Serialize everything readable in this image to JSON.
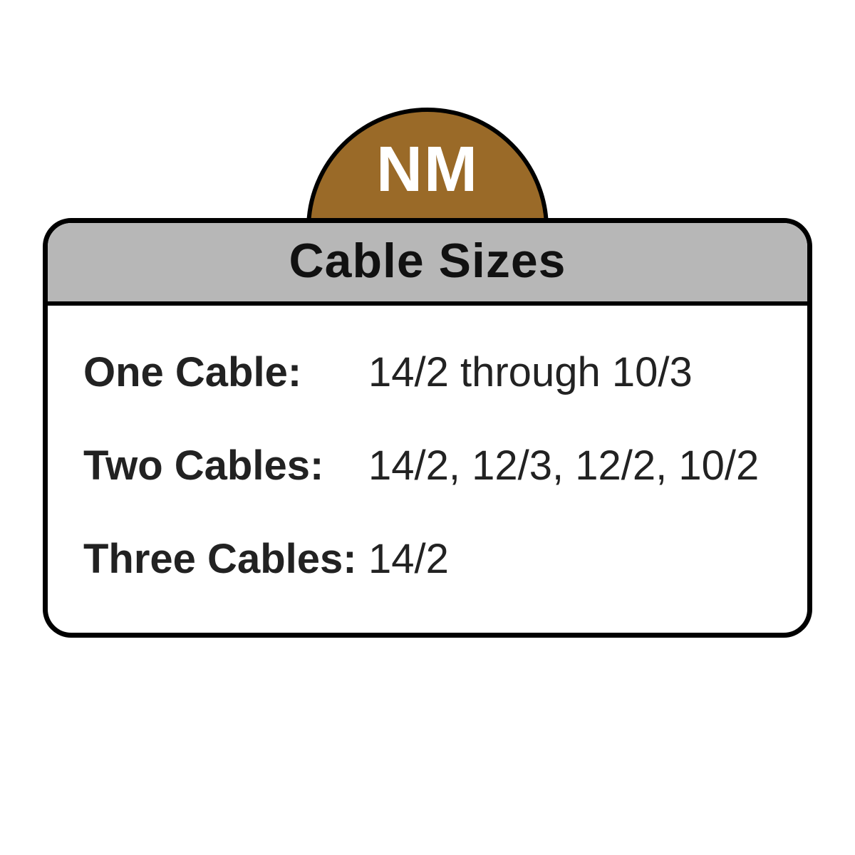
{
  "infographic": {
    "type": "infographic",
    "background_color": "#ffffff",
    "border_color": "#000000",
    "border_width": 7,
    "border_radius": 40,
    "tab": {
      "label": "NM",
      "bg_color": "#9a6a28",
      "text_color": "#ffffff",
      "font_size": 90,
      "font_weight": 700
    },
    "header": {
      "title": "Cable Sizes",
      "bg_color": "#b7b7b7",
      "text_color": "#111111",
      "font_size": 68,
      "font_weight": 800
    },
    "body": {
      "bg_color": "#ffffff",
      "text_color": "#222222",
      "label_font_size": 58,
      "label_font_weight": 700,
      "value_font_size": 58,
      "value_font_weight": 400,
      "rows": [
        {
          "label": "One Cable:",
          "value": "14/2 through 10/3"
        },
        {
          "label": "Two Cables:",
          "value": "14/2, 12/3, 12/2,  10/2"
        },
        {
          "label": "Three Cables:",
          "value": "14/2"
        }
      ]
    }
  }
}
